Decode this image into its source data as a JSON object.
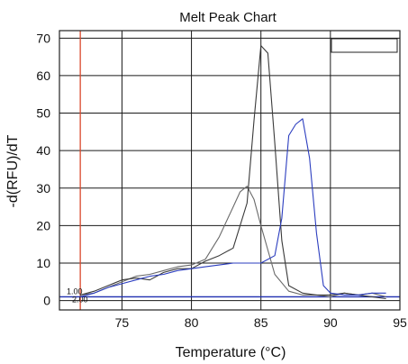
{
  "chart_data": {
    "type": "line",
    "title": "Melt Peak Chart",
    "xlabel": "Temperature (°C)",
    "ylabel": "-d(RFU)/dT",
    "xlim": [
      70.5,
      95
    ],
    "ylim": [
      -2.5,
      72
    ],
    "x_ticks": [
      75,
      80,
      85,
      90,
      95
    ],
    "y_ticks": [
      0,
      10,
      20,
      30,
      40,
      50,
      60,
      70
    ],
    "grid": true,
    "legend": "top-right",
    "threshold": {
      "label": "1.00",
      "value": 1.0,
      "color": "#1f2fb0"
    },
    "threshold_secondary_label": "2.00",
    "marker_line": {
      "x": 72,
      "color": "#d9472b"
    },
    "series": [
      {
        "color": "#6a6a6a",
        "x": [
          72,
          73,
          74,
          75,
          76,
          77,
          78,
          79,
          80,
          81,
          82,
          83,
          83.5,
          84,
          84.5,
          85,
          86,
          87,
          88,
          89,
          90,
          91,
          92,
          93,
          94
        ],
        "y": [
          1.5,
          2.0,
          3.5,
          5.0,
          6.5,
          7.0,
          8.0,
          9.0,
          9.5,
          11.0,
          17.0,
          25.0,
          29.0,
          30.5,
          27.0,
          20.0,
          7.0,
          2.5,
          1.5,
          1.5,
          1.0,
          2.0,
          1.5,
          2.0,
          1.0
        ]
      },
      {
        "color": "#3a3a3a",
        "x": [
          72,
          73,
          74,
          75,
          76,
          77,
          78,
          79,
          80,
          81,
          82,
          83,
          84,
          84.5,
          85,
          85.5,
          86,
          86.5,
          87,
          88,
          89,
          90,
          91,
          92,
          93,
          94
        ],
        "y": [
          1.5,
          2.5,
          4.0,
          5.5,
          6.0,
          5.5,
          7.5,
          8.5,
          8.5,
          10.5,
          12.0,
          14.0,
          26.0,
          48.0,
          68.0,
          66.0,
          42.0,
          16.0,
          4.0,
          2.0,
          1.5,
          1.5,
          2.0,
          1.5,
          1.0,
          0.5
        ]
      },
      {
        "color": "#2b3dbf",
        "x": [
          72,
          73,
          74,
          75,
          76,
          77,
          78,
          79,
          80,
          81,
          82,
          83,
          84,
          85,
          86,
          86.5,
          87,
          87.5,
          88,
          88.5,
          89,
          89.5,
          90,
          91,
          92,
          93,
          94
        ],
        "y": [
          1.0,
          2.0,
          3.5,
          4.5,
          5.5,
          6.5,
          7.0,
          8.0,
          8.5,
          9.0,
          9.5,
          10.0,
          10.0,
          10.0,
          12.0,
          22.0,
          44.0,
          47.0,
          48.5,
          38.0,
          18.0,
          4.0,
          2.0,
          1.5,
          1.5,
          2.0,
          2.0
        ]
      }
    ]
  }
}
